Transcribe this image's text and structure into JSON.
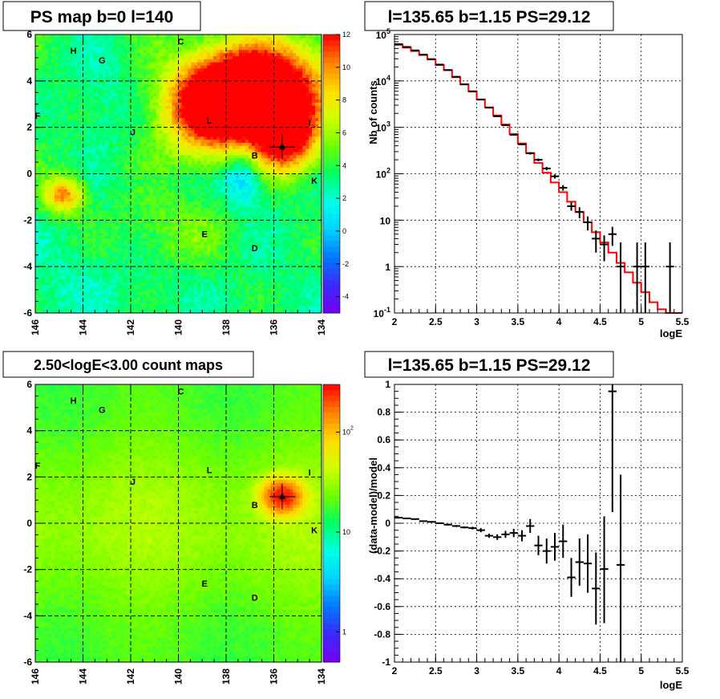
{
  "chart_data": [
    {
      "id": "ps-map",
      "type": "heatmap",
      "title": "PS map b=0 l=140",
      "x_range": [
        146,
        134
      ],
      "y_range": [
        -6,
        6
      ],
      "x_ticks": [
        "146",
        "144",
        "142",
        "140",
        "138",
        "136",
        "134"
      ],
      "y_ticks": [
        "6",
        "4",
        "2",
        "0",
        "-2",
        "-4",
        "-6"
      ],
      "colorbar": {
        "range": [
          -5,
          12
        ],
        "ticks": [
          "12",
          "10",
          "8",
          "6",
          "4",
          "2",
          "0",
          "-2",
          "-4"
        ]
      },
      "source_labels": [
        {
          "text": "H",
          "l": 144.4,
          "b": 5.3
        },
        {
          "text": "G",
          "l": 143.2,
          "b": 4.9
        },
        {
          "text": "C",
          "l": 139.9,
          "b": 5.7
        },
        {
          "text": "F",
          "l": 145.9,
          "b": 2.5
        },
        {
          "text": "J",
          "l": 141.9,
          "b": 1.8
        },
        {
          "text": "L",
          "l": 138.7,
          "b": 2.3
        },
        {
          "text": "I",
          "l": 134.5,
          "b": 2.2
        },
        {
          "text": "B",
          "l": 136.8,
          "b": 0.8
        },
        {
          "text": "K",
          "l": 134.3,
          "b": -0.3
        },
        {
          "text": "E",
          "l": 138.9,
          "b": -2.6
        },
        {
          "text": "D",
          "l": 136.8,
          "b": -3.2
        }
      ],
      "marker": {
        "l": 135.65,
        "b": 1.15
      }
    },
    {
      "id": "spectrum",
      "type": "line",
      "title": "l=135.65 b=1.15 PS=29.12",
      "xlabel": "logE",
      "ylabel": "Nb of counts",
      "xlim": [
        2,
        5.5
      ],
      "ylim": [
        0.1,
        100000
      ],
      "y_scale": "log",
      "x_ticks": [
        "2",
        "2.5",
        "3",
        "3.5",
        "4",
        "4.5",
        "5",
        "5.5"
      ],
      "y_ticks": [
        {
          "v": 0.1,
          "t": "10",
          "sup": "-1"
        },
        {
          "v": 1,
          "t": "1",
          "sup": ""
        },
        {
          "v": 10,
          "t": "10",
          "sup": ""
        },
        {
          "v": 100,
          "t": "10",
          "sup": "2"
        },
        {
          "v": 1000,
          "t": "10",
          "sup": "3"
        },
        {
          "v": 10000,
          "t": "10",
          "sup": "4"
        },
        {
          "v": 100000,
          "t": "10",
          "sup": "5"
        }
      ],
      "grid": true,
      "series": [
        {
          "kind": "model-step",
          "color": "#ff0000",
          "edges": [
            2.0,
            2.1,
            2.2,
            2.3,
            2.4,
            2.5,
            2.6,
            2.7,
            2.8,
            2.9,
            3.0,
            3.1,
            3.2,
            3.3,
            3.4,
            3.5,
            3.6,
            3.7,
            3.8,
            3.9,
            4.0,
            4.1,
            4.2,
            4.3,
            4.4,
            4.5,
            4.6,
            4.7,
            4.8,
            4.9,
            5.0,
            5.1,
            5.2,
            5.3,
            5.4,
            5.5
          ],
          "values": [
            60000,
            52000,
            44000,
            36000,
            29000,
            22000,
            17000,
            12000,
            8500,
            6000,
            4000,
            2700,
            1800,
            1150,
            720,
            450,
            280,
            170,
            105,
            65,
            40,
            25,
            15,
            9,
            5.5,
            3.3,
            2.0,
            1.2,
            0.75,
            0.45,
            0.28,
            0.17,
            0.12,
            0.1,
            0.1
          ]
        },
        {
          "kind": "data-points",
          "color": "#000000",
          "x": [
            2.05,
            2.15,
            2.25,
            2.35,
            2.45,
            2.55,
            2.65,
            2.75,
            2.85,
            2.95,
            3.05,
            3.15,
            3.25,
            3.35,
            3.45,
            3.55,
            3.65,
            3.75,
            3.85,
            3.95,
            4.05,
            4.15,
            4.25,
            4.35,
            4.45,
            4.55,
            4.65,
            4.75,
            4.95,
            5.05,
            5.35
          ],
          "y": [
            62000,
            54000,
            45500,
            37000,
            29500,
            22500,
            17200,
            12300,
            8400,
            5900,
            3950,
            2650,
            1730,
            1110,
            690,
            430,
            275,
            200,
            130,
            88,
            50,
            20,
            15,
            9,
            4,
            3,
            5,
            1,
            1,
            1,
            1
          ],
          "lo": [
            61750,
            53770,
            45290,
            36810,
            29330,
            22350,
            17070,
            12190,
            8310,
            5820,
            3890,
            2600,
            1690,
            1080,
            665,
            410,
            259,
            186,
            119,
            79,
            43,
            16,
            11,
            6,
            2,
            1.3,
            2.8,
            0.1,
            0.1,
            0.1,
            0.1
          ],
          "hi": [
            62250,
            54230,
            45710,
            37190,
            29670,
            22650,
            17330,
            12410,
            8490,
            5980,
            4010,
            2700,
            1770,
            1140,
            715,
            450,
            291,
            214,
            141,
            97,
            57,
            24,
            19,
            12,
            6,
            4.7,
            7.2,
            3.3,
            3.3,
            3.3,
            3.3
          ],
          "xerr": 0.05
        }
      ]
    },
    {
      "id": "count-map",
      "type": "heatmap",
      "title": "2.50<logE<3.00 count maps",
      "x_range": [
        146,
        134
      ],
      "y_range": [
        -6,
        6
      ],
      "x_ticks": [
        "146",
        "144",
        "142",
        "140",
        "138",
        "136",
        "134"
      ],
      "y_ticks": [
        "6",
        "4",
        "2",
        "0",
        "-2",
        "-4",
        "-6"
      ],
      "colorbar": {
        "scale": "log",
        "range": [
          0.5,
          300
        ],
        "ticks": [
          {
            "v": 100,
            "t": "10",
            "sup": "2"
          },
          {
            "v": 10,
            "t": "10",
            "sup": ""
          },
          {
            "v": 1,
            "t": "1",
            "sup": ""
          }
        ]
      },
      "source_labels": [
        {
          "text": "H",
          "l": 144.4,
          "b": 5.3
        },
        {
          "text": "G",
          "l": 143.2,
          "b": 4.9
        },
        {
          "text": "C",
          "l": 139.9,
          "b": 5.7
        },
        {
          "text": "F",
          "l": 145.9,
          "b": 2.5
        },
        {
          "text": "J",
          "l": 141.9,
          "b": 1.8
        },
        {
          "text": "L",
          "l": 138.7,
          "b": 2.3
        },
        {
          "text": "I",
          "l": 134.5,
          "b": 2.2
        },
        {
          "text": "B",
          "l": 136.8,
          "b": 0.8
        },
        {
          "text": "K",
          "l": 134.3,
          "b": -0.3
        },
        {
          "text": "E",
          "l": 138.9,
          "b": -2.6
        },
        {
          "text": "D",
          "l": 136.8,
          "b": -3.2
        }
      ],
      "marker": {
        "l": 135.65,
        "b": 1.15
      }
    },
    {
      "id": "residuals",
      "type": "scatter",
      "title": "l=135.65 b=1.15 PS=29.12",
      "xlabel": "logE",
      "ylabel": "(data-model)/model",
      "xlim": [
        2,
        5.5
      ],
      "ylim": [
        -1,
        1
      ],
      "x_ticks": [
        "2",
        "2.5",
        "3",
        "3.5",
        "4",
        "4.5",
        "5",
        "5.5"
      ],
      "y_ticks": [
        "1",
        "0.8",
        "0.6",
        "0.4",
        "0.2",
        "0",
        "-0.2",
        "-0.4",
        "-0.6",
        "-0.8",
        "-1"
      ],
      "grid": true,
      "series": [
        {
          "kind": "data-points",
          "color": "#000000",
          "x": [
            2.05,
            2.15,
            2.25,
            2.35,
            2.45,
            2.55,
            2.65,
            2.75,
            2.85,
            2.95,
            3.05,
            3.15,
            3.25,
            3.35,
            3.45,
            3.55,
            3.65,
            3.75,
            3.85,
            3.95,
            4.05,
            4.15,
            4.25,
            4.35,
            4.45,
            4.55,
            4.65,
            4.75
          ],
          "y": [
            0.04,
            0.035,
            0.03,
            0.015,
            0.01,
            0.0,
            -0.01,
            -0.02,
            -0.03,
            -0.035,
            -0.05,
            -0.09,
            -0.1,
            -0.08,
            -0.07,
            -0.09,
            -0.02,
            -0.16,
            -0.2,
            -0.17,
            -0.13,
            -0.39,
            -0.28,
            -0.29,
            -0.47,
            -0.33,
            0.95,
            -0.3
          ],
          "lo": [
            0.035,
            0.03,
            0.025,
            0.01,
            0.005,
            -0.006,
            -0.016,
            -0.027,
            -0.038,
            -0.045,
            -0.065,
            -0.105,
            -0.12,
            -0.105,
            -0.1,
            -0.13,
            -0.07,
            -0.23,
            -0.29,
            -0.27,
            -0.25,
            -0.53,
            -0.45,
            -0.5,
            -0.73,
            -0.72,
            0.08,
            -1.0
          ],
          "hi": [
            0.045,
            0.04,
            0.035,
            0.02,
            0.015,
            0.006,
            -0.004,
            -0.013,
            -0.022,
            -0.025,
            -0.035,
            -0.075,
            -0.08,
            -0.055,
            -0.04,
            -0.05,
            0.03,
            -0.09,
            -0.11,
            -0.07,
            -0.01,
            -0.25,
            -0.11,
            -0.08,
            -0.21,
            0.05,
            1.0,
            0.35
          ],
          "xerr": 0.05
        }
      ]
    }
  ]
}
